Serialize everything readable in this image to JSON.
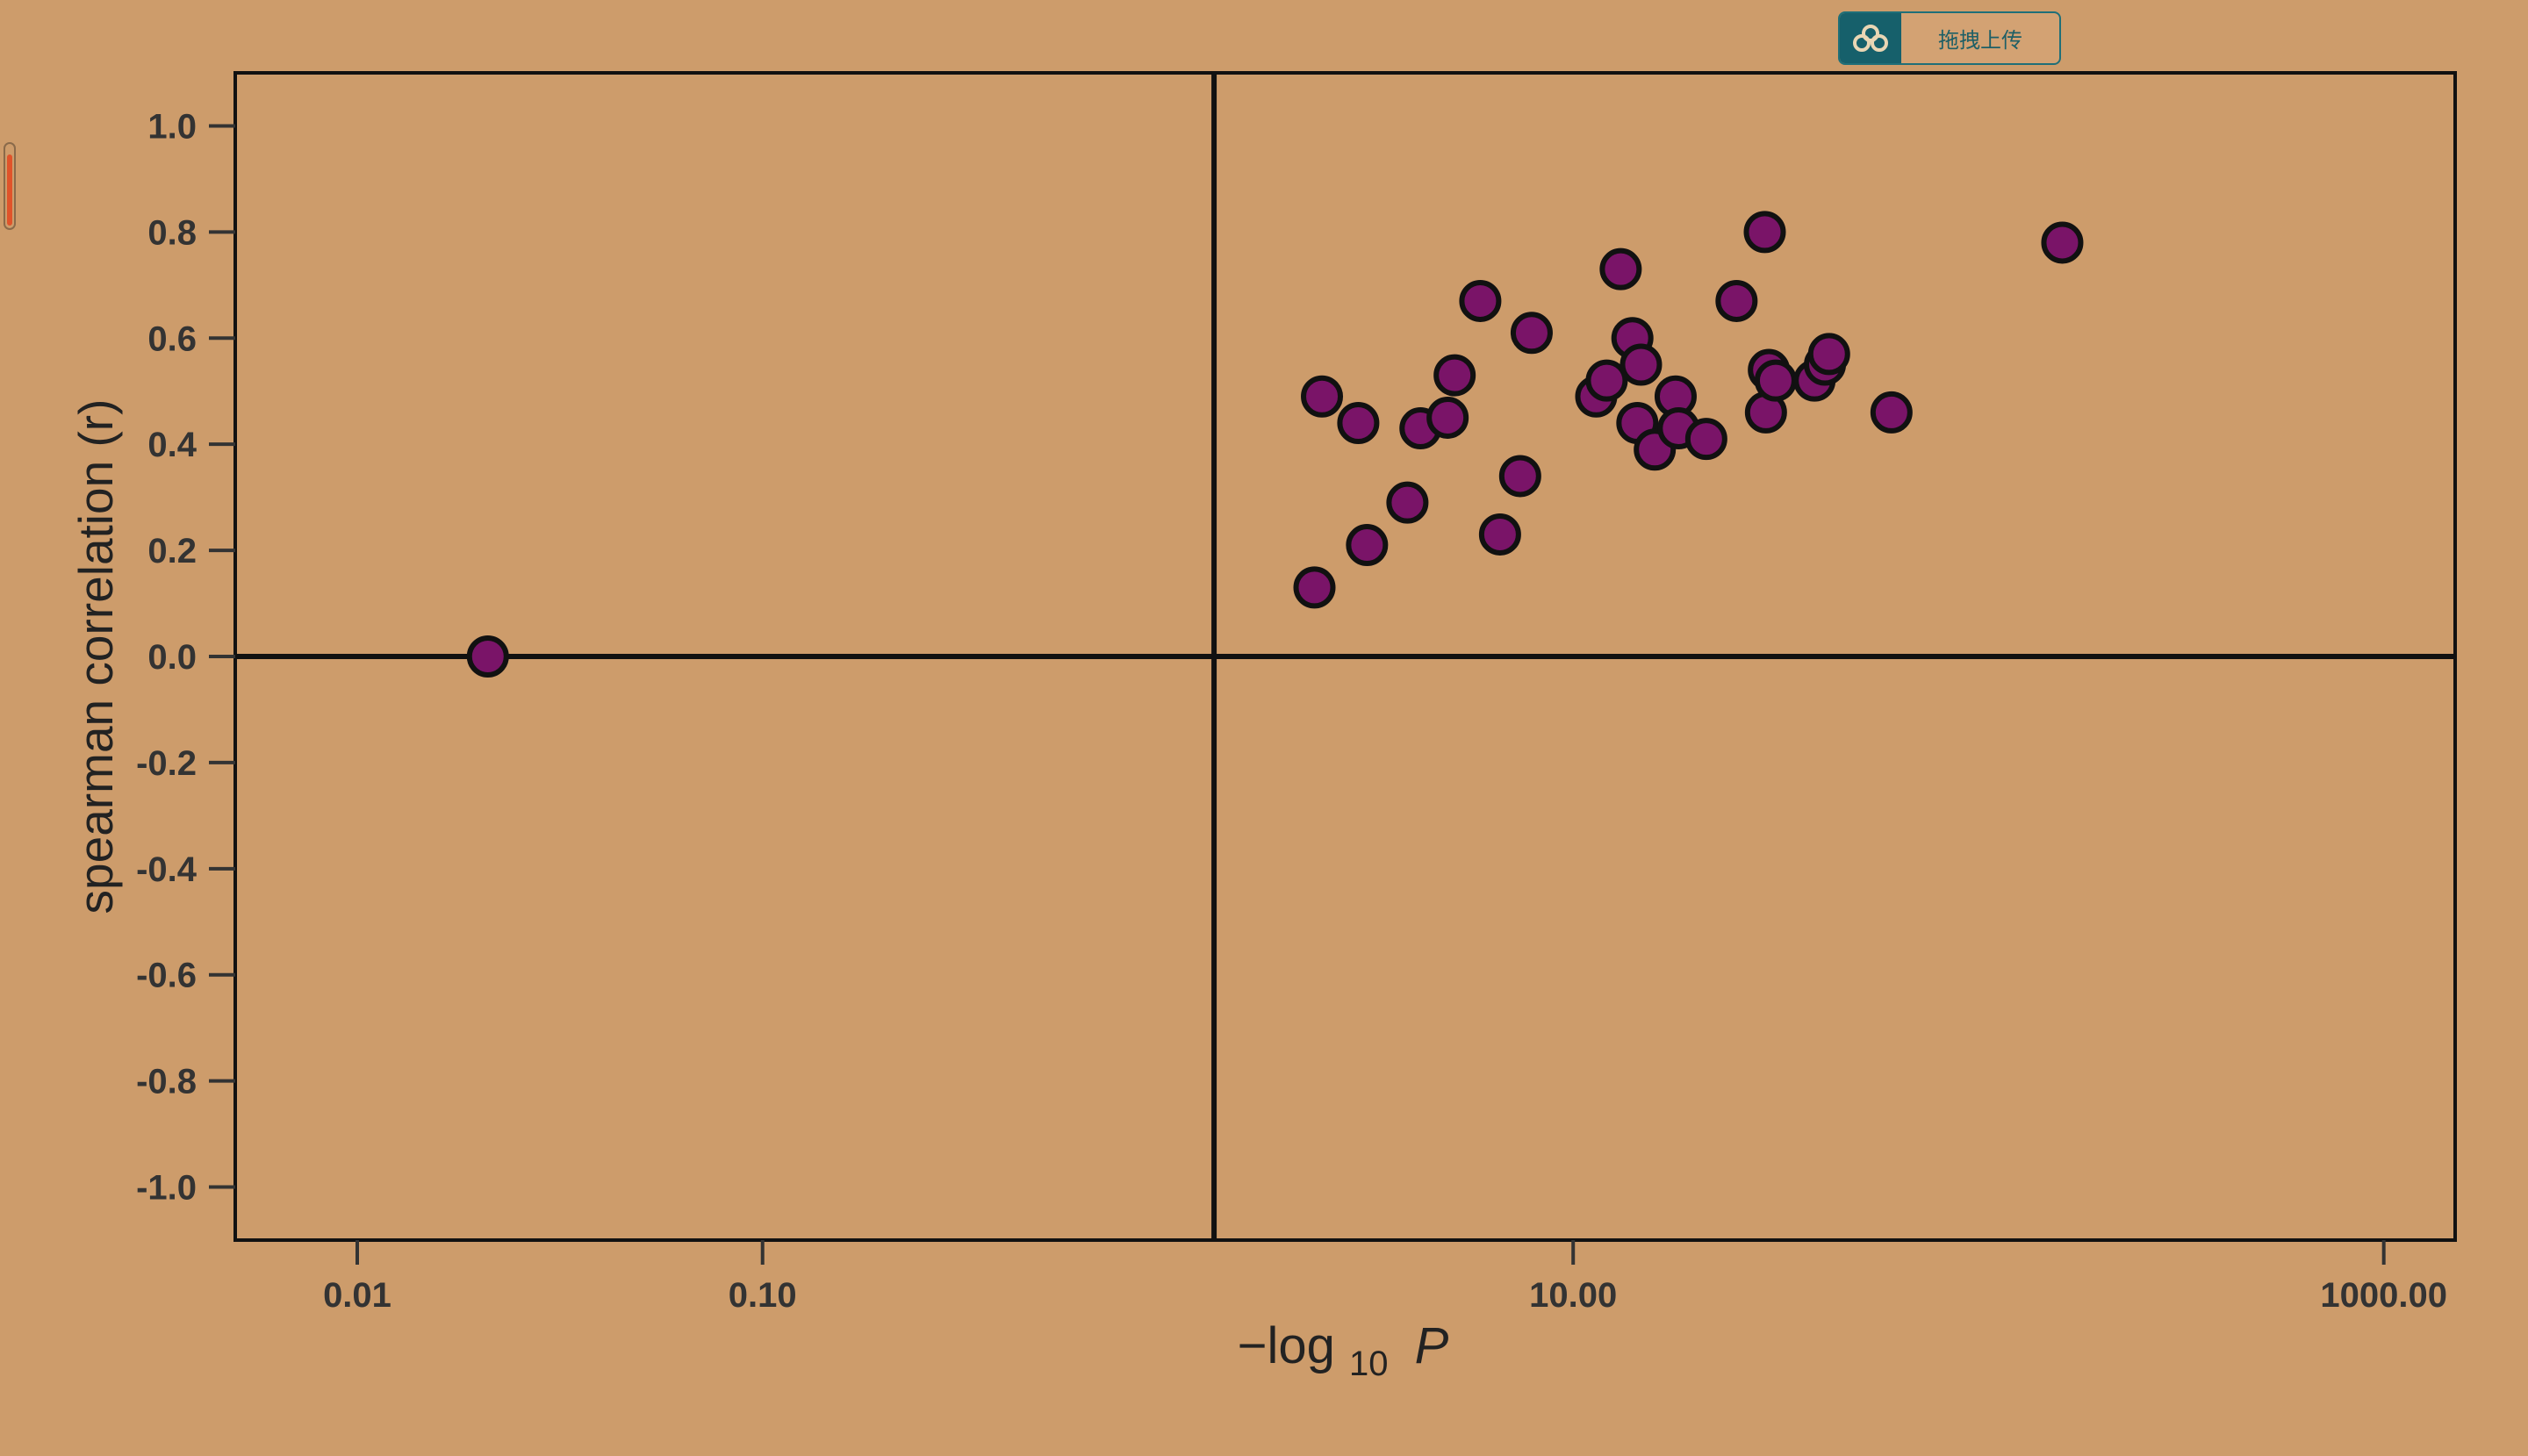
{
  "page": {
    "background_color": "#CD9C6B"
  },
  "upload_widget": {
    "label": "拖拽上传",
    "icon": "cloud-upload-icon",
    "accent_color": "#16606B"
  },
  "side_handle": {
    "icon": "vertical-slider-handle",
    "level": 0.9,
    "fill_color": "#E0532A"
  },
  "chart_data": {
    "type": "scatter",
    "title": "",
    "xlabel_prefix": "−log",
    "xlabel_subscript": "10",
    "xlabel_var": "P",
    "ylabel": "spearman correlation (r)",
    "x_scale": "log",
    "xlim": [
      0.005,
      1500
    ],
    "ylim": [
      -1.1,
      1.1
    ],
    "xticks": [
      0.01,
      0.1,
      10,
      1000
    ],
    "xtick_labels": [
      "0.01",
      "0.10",
      "10.00",
      "1000.00"
    ],
    "yticks": [
      1.0,
      0.8,
      0.6,
      0.4,
      0.2,
      0.0,
      -0.2,
      -0.4,
      -0.6,
      -0.8,
      -1.0
    ],
    "ytick_labels": [
      "1.0",
      "0.8",
      "0.6",
      "0.4",
      "0.2",
      "0.0",
      "-0.2",
      "-0.4",
      "-0.6",
      "-0.8",
      "-1.0"
    ],
    "reference_lines": {
      "vertical_x": 1.3,
      "horizontal_y": 0.0
    },
    "grid": false,
    "legend": "none",
    "marker_color": "#7A1468",
    "marker_edge_color": "#111111",
    "points": [
      {
        "x": 0.021,
        "y": 0.0
      },
      {
        "x": 2.3,
        "y": 0.13
      },
      {
        "x": 2.4,
        "y": 0.49
      },
      {
        "x": 2.95,
        "y": 0.44
      },
      {
        "x": 3.1,
        "y": 0.21
      },
      {
        "x": 3.9,
        "y": 0.29
      },
      {
        "x": 4.2,
        "y": 0.43
      },
      {
        "x": 4.9,
        "y": 0.45
      },
      {
        "x": 5.1,
        "y": 0.53
      },
      {
        "x": 5.9,
        "y": 0.67
      },
      {
        "x": 6.6,
        "y": 0.23
      },
      {
        "x": 7.4,
        "y": 0.34
      },
      {
        "x": 7.9,
        "y": 0.61
      },
      {
        "x": 11.4,
        "y": 0.49
      },
      {
        "x": 12.1,
        "y": 0.52
      },
      {
        "x": 13.1,
        "y": 0.73
      },
      {
        "x": 14.0,
        "y": 0.6
      },
      {
        "x": 14.4,
        "y": 0.44
      },
      {
        "x": 14.7,
        "y": 0.55
      },
      {
        "x": 15.9,
        "y": 0.39
      },
      {
        "x": 17.9,
        "y": 0.49
      },
      {
        "x": 18.2,
        "y": 0.43
      },
      {
        "x": 21.3,
        "y": 0.41
      },
      {
        "x": 25.3,
        "y": 0.67
      },
      {
        "x": 29.7,
        "y": 0.8
      },
      {
        "x": 29.9,
        "y": 0.46
      },
      {
        "x": 30.4,
        "y": 0.54
      },
      {
        "x": 31.6,
        "y": 0.52
      },
      {
        "x": 39.4,
        "y": 0.52
      },
      {
        "x": 41.8,
        "y": 0.55
      },
      {
        "x": 42.8,
        "y": 0.57
      },
      {
        "x": 61.0,
        "y": 0.46
      },
      {
        "x": 161.0,
        "y": 0.78
      }
    ]
  }
}
